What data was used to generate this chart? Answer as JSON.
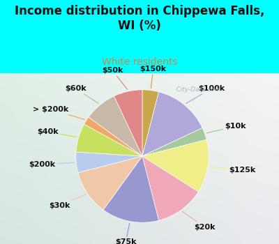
{
  "title": "Income distribution in Chippewa Falls,\nWI (%)",
  "subtitle": "White residents",
  "background_color": "#00FFFF",
  "chart_bg_color_tl": "#e8f5f0",
  "chart_bg_color_br": "#c8e8d8",
  "labels": [
    "$150k",
    "$100k",
    "$10k",
    "$125k",
    "$20k",
    "$75k",
    "$30k",
    "$200k",
    "$40k",
    "> $200k",
    "$60k",
    "$50k"
  ],
  "values": [
    4,
    14,
    3,
    13,
    12,
    14,
    11,
    5,
    7,
    2,
    8,
    7
  ],
  "colors": [
    "#c8a84b",
    "#b0a8d8",
    "#a8c8a0",
    "#f0ee88",
    "#f0a8b8",
    "#9898d0",
    "#f0c8a8",
    "#b8ccee",
    "#c8e060",
    "#f0a868",
    "#c8b8a8",
    "#e08888"
  ],
  "label_fontsize": 8,
  "title_fontsize": 12,
  "subtitle_fontsize": 10,
  "title_color": "#101010",
  "subtitle_color": "#cc8844",
  "label_color": "#101010",
  "watermark": "  City-Data.com"
}
